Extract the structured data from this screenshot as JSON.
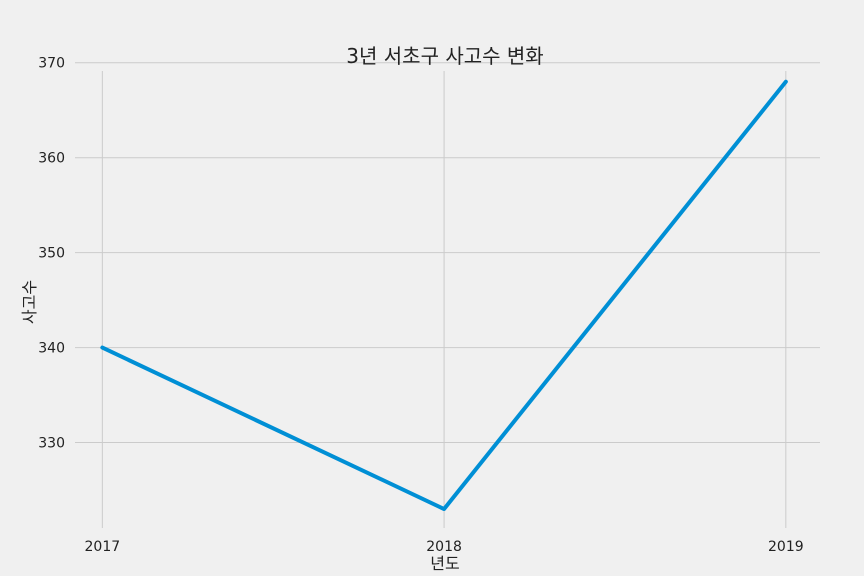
{
  "chart_data": {
    "type": "line",
    "title": "3년 서초구 사고수 변화",
    "xlabel": "년도",
    "ylabel": "사고수",
    "x": [
      "2017",
      "2018",
      "2019"
    ],
    "series": [
      {
        "values": [
          340,
          323,
          368
        ],
        "color": "#008fd5"
      }
    ],
    "xlim": [
      2016.92,
      2019.1
    ],
    "ylim": [
      321,
      370.5
    ],
    "yticks": [
      330,
      340,
      350,
      360,
      370
    ],
    "grid": true,
    "background": "#f0f0f0",
    "grid_color": "#cbcbcb"
  }
}
